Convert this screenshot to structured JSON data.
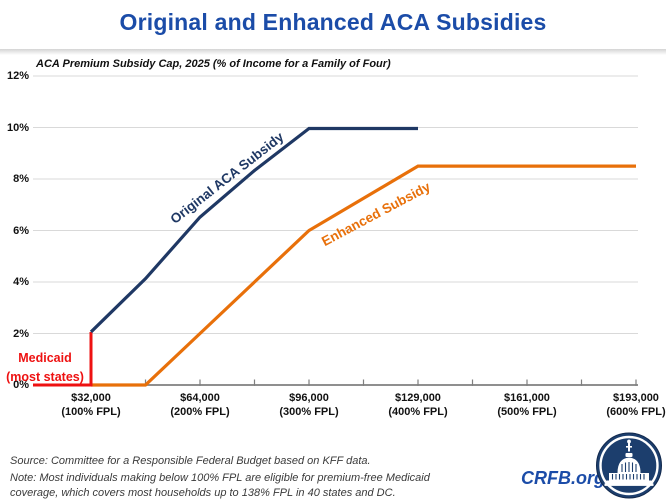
{
  "title": {
    "text": "Original and Enhanced ACA Subsidies"
  },
  "colors": {
    "title_blue": "#1b4ca8",
    "navy": "#1f3864",
    "orange": "#e8700a",
    "red": "#ee1111",
    "gridline": "#d9d9d9",
    "axis": "#7f7f7f",
    "footer_text": "#3a3a3a"
  },
  "chart_data": {
    "type": "line",
    "subtitle": "ACA Premium Subsidy Cap, 2025 (% of Income for a Family of Four)",
    "y_axis": {
      "labels": [
        "0%",
        "2%",
        "4%",
        "6%",
        "8%",
        "10%",
        "12%"
      ],
      "min": 0,
      "max": 12,
      "tick_step_pct": 2,
      "grid": true
    },
    "x_axis": {
      "minor_tick_step_fpl": 50,
      "ticks": [
        {
          "income": "$32,000",
          "fpl_label": "(100% FPL)",
          "fpl": 100
        },
        {
          "income": "$64,000",
          "fpl_label": "(200% FPL)",
          "fpl": 200
        },
        {
          "income": "$96,000",
          "fpl_label": "(300% FPL)",
          "fpl": 300
        },
        {
          "income": "$129,000",
          "fpl_label": "(400% FPL)",
          "fpl": 400
        },
        {
          "income": "$161,000",
          "fpl_label": "(500% FPL)",
          "fpl": 500
        },
        {
          "income": "$193,000",
          "fpl_label": "(600% FPL)",
          "fpl": 600
        }
      ]
    },
    "series": [
      {
        "name": "Original ACA Subsidy",
        "color": "#1f3864",
        "fpl": [
          100,
          150,
          200,
          250,
          300,
          400
        ],
        "subsidy_cap_pct": [
          2.06,
          4.13,
          6.52,
          8.33,
          9.96,
          9.96
        ]
      },
      {
        "name": "Enhanced Subsidy",
        "color": "#e8700a",
        "fpl": [
          100,
          150,
          200,
          250,
          300,
          400,
          600
        ],
        "subsidy_cap_pct": [
          0,
          0,
          2,
          4,
          6,
          8.5,
          8.5
        ]
      }
    ],
    "medicaid_annotation": {
      "label_line1": "Medicaid",
      "label_line2": "(most states)",
      "color": "#ee1111",
      "marker_at_fpl": 100,
      "marker_top_pct": 2.06
    }
  },
  "footer": {
    "source": "Source: Committee for a Responsible Federal Budget based on KFF data.",
    "note": "Note: Most individuals making below 100% FPL are eligible for premium-free Medicaid coverage, which covers most households up to 138% FPL in 40 states and DC.",
    "brand": "CRFB.org"
  }
}
